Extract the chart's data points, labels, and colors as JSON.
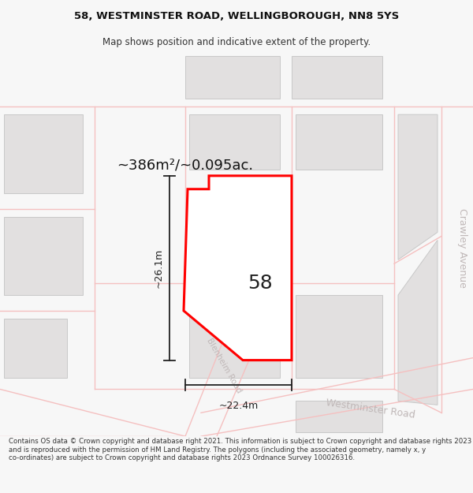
{
  "title": "58, WESTMINSTER ROAD, WELLINGBOROUGH, NN8 5YS",
  "subtitle": "Map shows position and indicative extent of the property.",
  "footer": "Contains OS data © Crown copyright and database right 2021. This information is subject to Crown copyright and database rights 2023 and is reproduced with the permission of HM Land Registry. The polygons (including the associated geometry, namely x, y co-ordinates) are subject to Crown copyright and database rights 2023 Ordnance Survey 100026316.",
  "area_label": "~386m²/~0.095ac.",
  "width_label": "~22.4m",
  "height_label": "~26.1m",
  "number_label": "58",
  "title_fontsize": 9.5,
  "subtitle_fontsize": 8.5,
  "footer_fontsize": 6.2,
  "area_fontsize": 13,
  "dim_fontsize": 9,
  "number_fontsize": 18,
  "road_label_fontsize": 9,
  "bg_color": "#f7f7f7",
  "map_bg": "#f0eeee",
  "block_color": "#e2e0e0",
  "block_edge": "#c8c8c8",
  "highlight_fill": "#ffffff",
  "highlight_edge": "#ff0000",
  "pink": "#f5c0c0",
  "dim_color": "#222222",
  "road_label_color": "#c0b8b8",
  "crawley_label": "Crawley Avenue",
  "westminster_label": "Westminster Road",
  "blenheim_label": "Blenheim Road",
  "map_white": "#ffffff"
}
